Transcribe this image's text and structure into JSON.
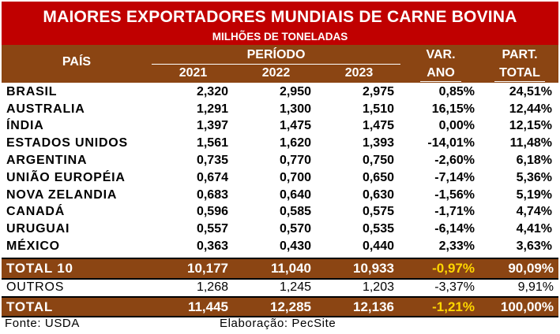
{
  "title": "MAIORES EXPORTADORES MUNDIAIS DE CARNE BOVINA",
  "subtitle": "MILHÕES DE TONELADAS",
  "headers": {
    "pais": "PAÍS",
    "periodo": "PERÍODO",
    "y2021": "2021",
    "y2022": "2022",
    "y2023": "2023",
    "var_top": "VAR.",
    "var_bottom": "ANO",
    "part_top": "PART.",
    "part_bottom": "TOTAL"
  },
  "rows": [
    {
      "pais": "BRASIL",
      "y2021": "2,320",
      "y2022": "2,950",
      "y2023": "2,975",
      "var": "0,85%",
      "part": "24,51%",
      "negative": false
    },
    {
      "pais": "AUSTRALIA",
      "y2021": "1,291",
      "y2022": "1,300",
      "y2023": "1,510",
      "var": "16,15%",
      "part": "12,44%",
      "negative": false
    },
    {
      "pais": "ÍNDIA",
      "y2021": "1,397",
      "y2022": "1,475",
      "y2023": "1,475",
      "var": "0,00%",
      "part": "12,15%",
      "negative": false
    },
    {
      "pais": "ESTADOS UNIDOS",
      "y2021": "1,561",
      "y2022": "1,620",
      "y2023": "1,393",
      "var": "-14,01%",
      "part": "11,48%",
      "negative": true
    },
    {
      "pais": "ARGENTINA",
      "y2021": "0,735",
      "y2022": "0,770",
      "y2023": "0,750",
      "var": "-2,60%",
      "part": "6,18%",
      "negative": true
    },
    {
      "pais": "UNIÃO EUROPÉIA",
      "y2021": "0,674",
      "y2022": "0,700",
      "y2023": "0,650",
      "var": "-7,14%",
      "part": "5,36%",
      "negative": true
    },
    {
      "pais": "NOVA ZELANDIA",
      "y2021": "0,683",
      "y2022": "0,640",
      "y2023": "0,630",
      "var": "-1,56%",
      "part": "5,19%",
      "negative": true
    },
    {
      "pais": "CANADÁ",
      "y2021": "0,596",
      "y2022": "0,585",
      "y2023": "0,575",
      "var": "-1,71%",
      "part": "4,74%",
      "negative": true
    },
    {
      "pais": "URUGUAI",
      "y2021": "0,557",
      "y2022": "0,570",
      "y2023": "0,535",
      "var": "-6,14%",
      "part": "4,41%",
      "negative": true
    },
    {
      "pais": "MÉXICO",
      "y2021": "0,363",
      "y2022": "0,430",
      "y2023": "0,440",
      "var": "2,33%",
      "part": "3,63%",
      "negative": false
    }
  ],
  "total10": {
    "pais": "TOTAL 10",
    "y2021": "10,177",
    "y2022": "11,040",
    "y2023": "10,933",
    "var": "-0,97%",
    "part": "90,09%"
  },
  "outros": {
    "pais": "OUTROS",
    "y2021": "1,268",
    "y2022": "1,245",
    "y2023": "1,203",
    "var": "-3,37%",
    "part": "9,91%"
  },
  "total": {
    "pais": "TOTAL",
    "y2021": "11,445",
    "y2022": "12,285",
    "y2023": "12,136",
    "var": "-1,21%",
    "part": "100,00%"
  },
  "footer": {
    "fonte": "Fonte: USDA",
    "elaboracao": "Elaboração: PecSite"
  },
  "colors": {
    "title_bg": "#c00000",
    "header_bg": "#8b4513",
    "negative": "#e00000",
    "highlight": "#ffd700"
  }
}
